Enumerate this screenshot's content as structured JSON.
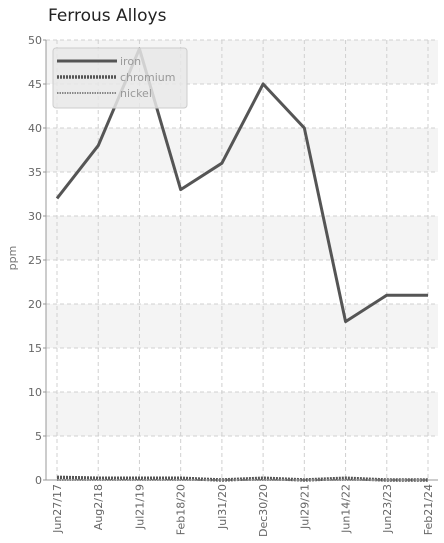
{
  "chart_data": {
    "type": "line",
    "title": "Ferrous Alloys",
    "xlabel": "",
    "ylabel": "ppm",
    "categories": [
      "Jun27/17",
      "Aug2/18",
      "Jul21/19",
      "Feb18/20",
      "Jul31/20",
      "Dec30/20",
      "Jul29/21",
      "Jun14/22",
      "Jun23/23",
      "Feb21/24"
    ],
    "ylim": [
      0,
      50
    ],
    "yticks": [
      0,
      5,
      10,
      15,
      20,
      25,
      30,
      35,
      40,
      45,
      50
    ],
    "grid": true,
    "legend_position": "top-left",
    "series": [
      {
        "name": "iron",
        "color": "#555555",
        "style": "solid",
        "values": [
          32,
          38,
          49,
          33,
          36,
          45,
          40,
          18,
          21,
          21
        ]
      },
      {
        "name": "chromium",
        "color": "#555555",
        "style": "dashed",
        "values": [
          0.3,
          0.2,
          0.2,
          0.2,
          0,
          0.2,
          0,
          0.2,
          0,
          0
        ]
      },
      {
        "name": "nickel",
        "color": "#888888",
        "style": "dotted",
        "values": [
          0,
          0,
          0,
          0,
          0,
          0,
          0,
          0,
          0,
          0
        ]
      }
    ]
  }
}
